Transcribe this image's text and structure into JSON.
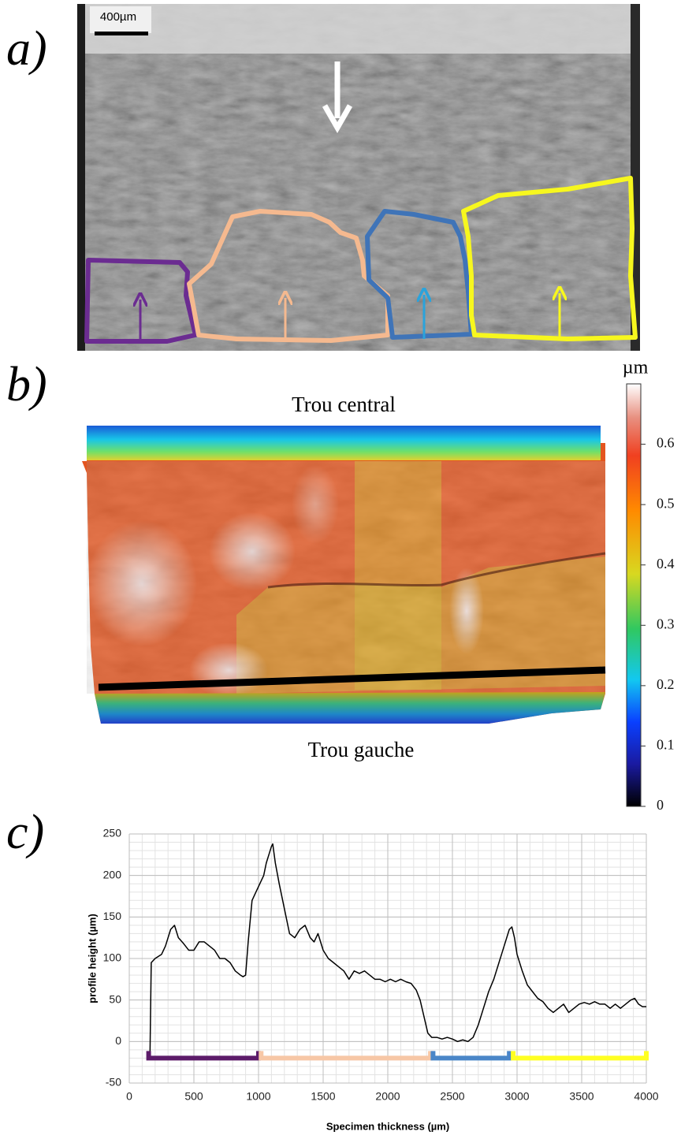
{
  "panels": {
    "a": {
      "label": "a)",
      "scale_bar": "400µm"
    },
    "b": {
      "label": "b)",
      "top_label": "Trou central",
      "bottom_label": "Trou gauche",
      "colorbar": {
        "unit": "µm",
        "ylim": [
          0,
          0.7
        ],
        "ticks": [
          0,
          0.1,
          0.2,
          0.3,
          0.4,
          0.5,
          0.6
        ]
      }
    },
    "c": {
      "label": "c)"
    }
  },
  "chart_data": {
    "type": "line",
    "x_label": "Specimen thickness (µm)",
    "y_label": "profile height (µm)",
    "xlim": [
      0,
      4000
    ],
    "ylim": [
      -50,
      250
    ],
    "xticks": [
      0,
      500,
      1000,
      1500,
      2000,
      2500,
      3000,
      3500,
      4000
    ],
    "yticks": [
      -50,
      0,
      50,
      100,
      150,
      200,
      250
    ],
    "grid": true,
    "minor_grid_step": {
      "x": 100,
      "y": 10
    },
    "x": [
      160,
      170,
      200,
      250,
      280,
      320,
      350,
      380,
      420,
      460,
      500,
      540,
      580,
      620,
      660,
      700,
      740,
      780,
      820,
      860,
      880,
      900,
      920,
      950,
      980,
      1010,
      1040,
      1060,
      1080,
      1100,
      1110,
      1130,
      1160,
      1200,
      1240,
      1280,
      1320,
      1360,
      1400,
      1430,
      1460,
      1500,
      1540,
      1580,
      1620,
      1660,
      1700,
      1740,
      1780,
      1820,
      1860,
      1900,
      1940,
      1980,
      2020,
      2060,
      2100,
      2140,
      2180,
      2220,
      2250,
      2280,
      2310,
      2340,
      2380,
      2420,
      2460,
      2500,
      2540,
      2580,
      2620,
      2660,
      2700,
      2740,
      2780,
      2820,
      2860,
      2900,
      2940,
      2960,
      2980,
      3000,
      3040,
      3080,
      3120,
      3160,
      3200,
      3240,
      3280,
      3320,
      3360,
      3400,
      3440,
      3480,
      3520,
      3560,
      3600,
      3640,
      3680,
      3720,
      3760,
      3800,
      3840,
      3880,
      3910,
      3940,
      3970,
      4000
    ],
    "series": [
      {
        "color": "#000000",
        "values": [
          -20,
          95,
          100,
          105,
          115,
          135,
          140,
          125,
          118,
          110,
          110,
          120,
          120,
          115,
          110,
          100,
          100,
          95,
          85,
          80,
          78,
          80,
          120,
          170,
          180,
          190,
          200,
          215,
          225,
          235,
          238,
          215,
          190,
          160,
          130,
          125,
          135,
          140,
          125,
          120,
          130,
          110,
          100,
          95,
          90,
          85,
          75,
          85,
          82,
          85,
          80,
          75,
          75,
          72,
          75,
          72,
          75,
          72,
          70,
          62,
          50,
          30,
          10,
          5,
          5,
          3,
          5,
          3,
          0,
          2,
          0,
          5,
          20,
          40,
          60,
          75,
          95,
          115,
          135,
          138,
          125,
          105,
          85,
          68,
          60,
          52,
          48,
          40,
          35,
          40,
          45,
          35,
          40,
          45,
          47,
          45,
          48,
          45,
          45,
          40,
          45,
          40,
          45,
          50,
          52,
          45,
          42,
          42
        ]
      }
    ],
    "brackets": [
      {
        "color": "#5c1b69",
        "y": -20,
        "x": [
          150,
          1000
        ]
      },
      {
        "color": "#f7c7a6",
        "y": -20,
        "x": [
          1020,
          2330
        ]
      },
      {
        "color": "#4a86c8",
        "y": -20,
        "x": [
          2350,
          2940
        ]
      },
      {
        "color": "#ffff22",
        "y": -20,
        "x": [
          2970,
          4000
        ]
      }
    ]
  }
}
